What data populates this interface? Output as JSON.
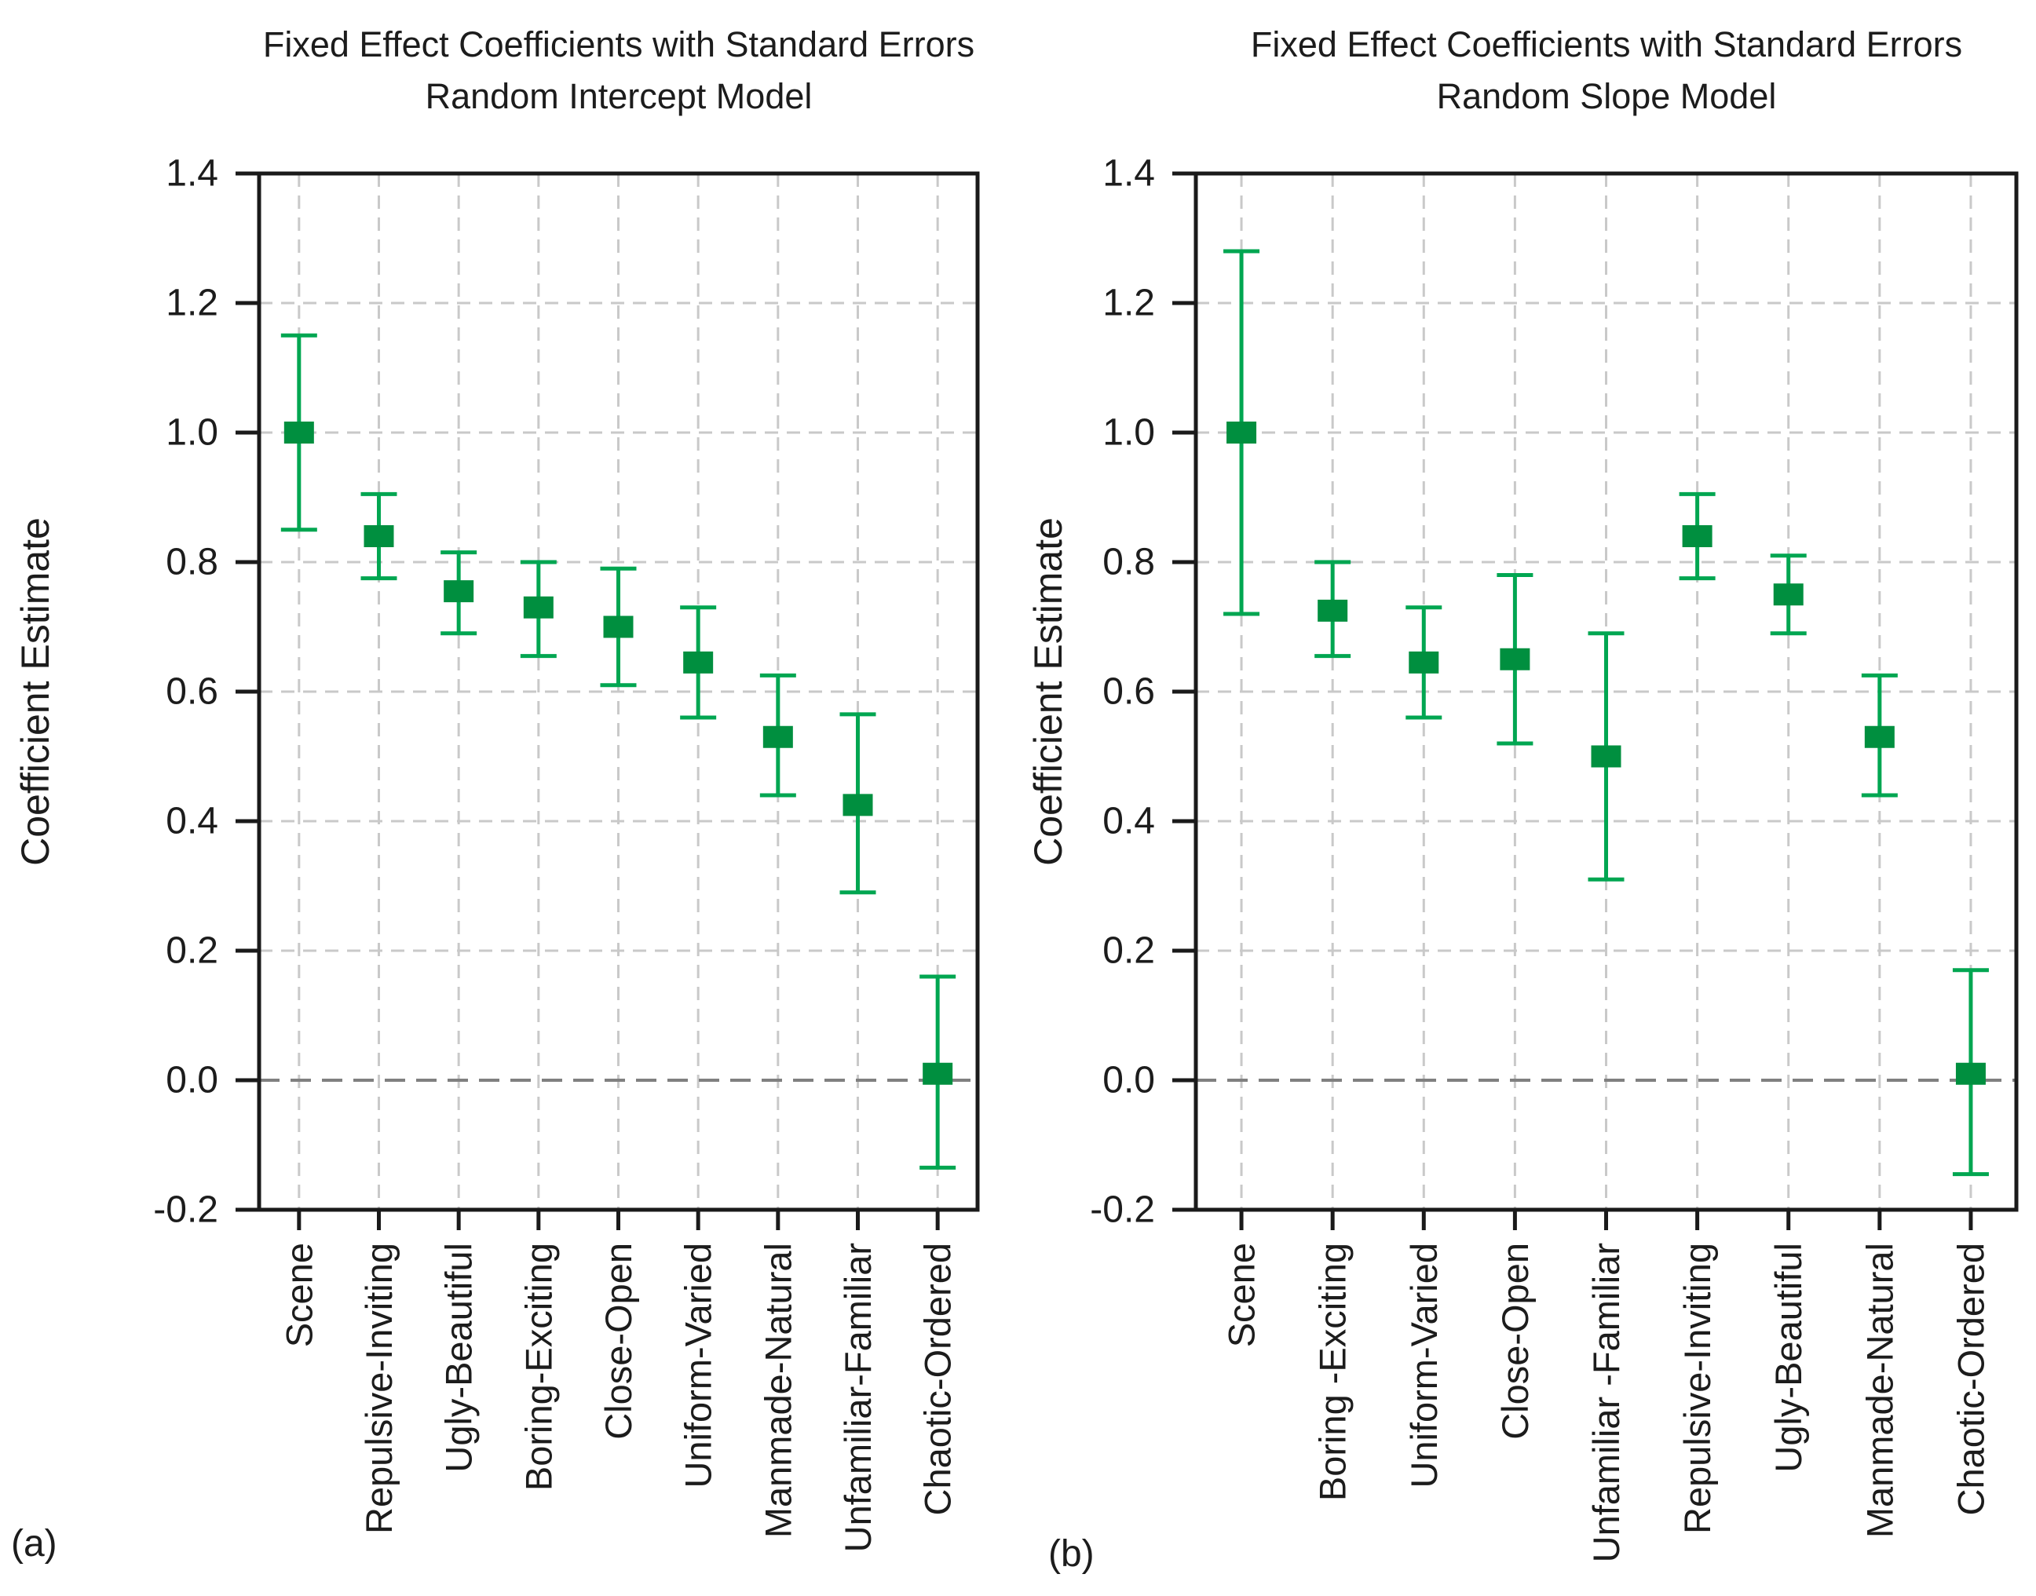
{
  "figure": {
    "panel_a_label": "(a)",
    "panel_b_label": "(b)",
    "background": "#FFFFFF",
    "colors": {
      "marker": "#008F3F",
      "error_bar": "#00A651",
      "grid": "#C9C9C9",
      "zero_line": "#808080",
      "axis": "#1A1A1A",
      "text": "#1C1C1C"
    }
  },
  "chart_data": [
    {
      "type": "scatter",
      "panel": "a",
      "title_line1": "Fixed Effect Coefficients with Standard Errors",
      "title_line2": "Random Intercept Model",
      "ylabel": "Coefficient Estimate",
      "xlabel": "",
      "ylim": [
        -0.2,
        1.4
      ],
      "yticks": [
        1.4,
        1.2,
        1.0,
        0.8,
        0.6,
        0.4,
        0.2,
        0.0,
        -0.2
      ],
      "ytick_labels": [
        "1.4",
        "1.2",
        "1.0",
        "0.8",
        "0.6",
        "0.4",
        "0.2",
        "0.0",
        "-0.2"
      ],
      "grid": true,
      "zero_reference_line": true,
      "marker": "square",
      "legend": "none",
      "categories": [
        "Scene",
        "Repulsive-Inviting",
        "Ugly-Beautiful",
        "Boring-Exciting",
        "Close-Open",
        "Uniform-Varied",
        "Manmade-Natural",
        "Unfamiliar-Familiar",
        "Chaotic-Ordered"
      ],
      "series": [
        {
          "name": "Fixed effect coefficient estimate",
          "values": [
            1.0,
            0.84,
            0.755,
            0.73,
            0.7,
            0.645,
            0.53,
            0.425,
            0.01
          ],
          "err_low": [
            0.85,
            0.775,
            0.69,
            0.655,
            0.61,
            0.56,
            0.44,
            0.29,
            -0.135
          ],
          "err_high": [
            1.15,
            0.905,
            0.815,
            0.8,
            0.79,
            0.73,
            0.625,
            0.565,
            0.16
          ]
        }
      ]
    },
    {
      "type": "scatter",
      "panel": "b",
      "title_line1": "Fixed Effect Coefficients with Standard Errors",
      "title_line2": "Random Slope Model",
      "ylabel": "Coefficient Estimate",
      "xlabel": "",
      "ylim": [
        -0.2,
        1.4
      ],
      "yticks": [
        1.4,
        1.2,
        1.0,
        0.8,
        0.6,
        0.4,
        0.2,
        0.0,
        -0.2
      ],
      "ytick_labels": [
        "1.4",
        "1.2",
        "1.0",
        "0.8",
        "0.6",
        "0.4",
        "0.2",
        "0.0",
        "-0.2"
      ],
      "grid": true,
      "zero_reference_line": true,
      "marker": "square",
      "legend": "none",
      "categories": [
        "Scene",
        "Boring -Exciting",
        "Uniform-Varied",
        "Close-Open",
        "Unfamiliar -Familiar",
        "Repulsive-Inviting",
        "Ugly-Beautiful",
        "Manmade-Natural",
        "Chaotic-Ordered"
      ],
      "series": [
        {
          "name": "Fixed effect coefficient estimate",
          "values": [
            1.0,
            0.725,
            0.645,
            0.65,
            0.5,
            0.84,
            0.75,
            0.53,
            0.01
          ],
          "err_low": [
            0.72,
            0.655,
            0.56,
            0.52,
            0.31,
            0.775,
            0.69,
            0.44,
            -0.145
          ],
          "err_high": [
            1.28,
            0.8,
            0.73,
            0.78,
            0.69,
            0.905,
            0.81,
            0.625,
            0.17
          ]
        }
      ]
    }
  ]
}
